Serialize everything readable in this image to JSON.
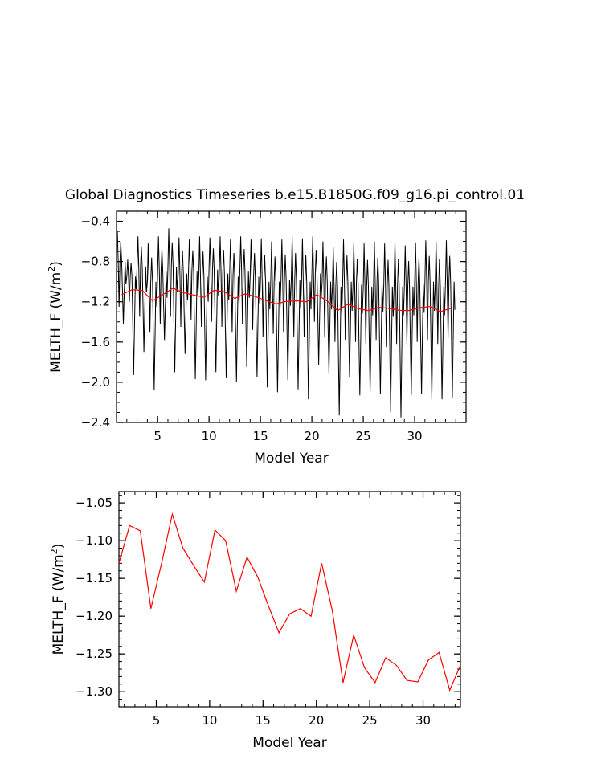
{
  "chart_data": [
    {
      "type": "line",
      "title": "Global Diagnostics Timeseries b.e15.B1850G.f09_g16.pi_control.01",
      "xlabel": "Model Year",
      "ylabel": "MELTH_F (W/m²)",
      "ylabel_parts": {
        "prefix": "MELTH_F (W/m",
        "sup": "2",
        "suffix": ")"
      },
      "xlim": [
        1,
        35
      ],
      "ylim": [
        -2.4,
        -0.3
      ],
      "x_ticks": [
        5,
        10,
        15,
        20,
        25,
        30
      ],
      "x_tick_labels": [
        "5",
        "10",
        "15",
        "20",
        "25",
        "30"
      ],
      "y_ticks": [
        -2.4,
        -2.0,
        -1.6,
        -1.2,
        -0.8,
        -0.4
      ],
      "y_tick_labels": [
        "−2.4",
        "−2.0",
        "−1.6",
        "−1.2",
        "−0.8",
        "−0.4"
      ],
      "grid": false,
      "monthly": {
        "start_year": 1.0,
        "annual_mean": [
          -1.13,
          -1.08,
          -1.087,
          -1.19,
          -1.13,
          -1.065,
          -1.11,
          -1.133,
          -1.155,
          -1.086,
          -1.1,
          -1.167,
          -1.122,
          -1.148,
          -1.186,
          -1.222,
          -1.197,
          -1.19,
          -1.2,
          -1.13,
          -1.193,
          -1.288,
          -1.225,
          -1.268,
          -1.288,
          -1.255,
          -1.265,
          -1.285,
          -1.287,
          -1.258,
          -1.248,
          -1.298,
          -1.265
        ],
        "annual_max": [
          -0.5,
          -0.78,
          -0.55,
          -0.62,
          -0.55,
          -0.47,
          -0.56,
          -0.58,
          -0.55,
          -0.56,
          -0.55,
          -0.58,
          -0.55,
          -0.58,
          -0.57,
          -0.6,
          -0.58,
          -0.55,
          -0.57,
          -0.55,
          -0.6,
          -0.66,
          -0.58,
          -0.62,
          -0.62,
          -0.6,
          -0.62,
          -0.6,
          -0.64,
          -0.61,
          -0.59,
          -0.6,
          -0.59
        ],
        "annual_min": [
          -1.42,
          -1.93,
          -1.7,
          -2.08,
          -1.58,
          -1.9,
          -1.72,
          -1.97,
          -1.98,
          -1.9,
          -1.96,
          -2.0,
          -1.85,
          -1.95,
          -2.05,
          -2.1,
          -1.98,
          -2.07,
          -2.17,
          -1.83,
          -1.92,
          -2.33,
          -1.95,
          -2.13,
          -2.1,
          -2.12,
          -2.3,
          -2.35,
          -2.13,
          -2.12,
          -2.17,
          -2.17,
          -2.16
        ],
        "annual_min2": [
          -1.25,
          -1.2,
          -1.35,
          -1.5,
          -1.42,
          -1.35,
          -1.45,
          -1.38,
          -1.45,
          -1.4,
          -1.45,
          -1.5,
          -1.42,
          -1.48,
          -1.55,
          -1.52,
          -1.5,
          -1.55,
          -1.55,
          -1.4,
          -1.55,
          -1.6,
          -1.58,
          -1.6,
          -1.62,
          -1.58,
          -1.65,
          -1.62,
          -1.62,
          -1.6,
          -1.58,
          -1.62,
          -1.56
        ],
        "annual_mid": [
          -0.8,
          -0.95,
          -0.85,
          -1.0,
          -0.9,
          -0.85,
          -0.92,
          -0.9,
          -0.95,
          -0.88,
          -0.92,
          -0.95,
          -0.9,
          -0.95,
          -1.0,
          -1.0,
          -0.98,
          -0.98,
          -1.0,
          -0.92,
          -1.0,
          -1.05,
          -1.0,
          -1.03,
          -1.05,
          -1.02,
          -1.05,
          -1.05,
          -1.05,
          -1.02,
          -1.0,
          -1.05,
          -1.0
        ],
        "mean_color": "#ff0000",
        "line_color": "#000000"
      }
    },
    {
      "type": "line",
      "xlabel": "Model Year",
      "ylabel": "MELTH_F (W/m²)",
      "ylabel_parts": {
        "prefix": "MELTH_F (W/m",
        "sup": "2",
        "suffix": ")"
      },
      "xlim": [
        1.5,
        33.5
      ],
      "ylim": [
        -1.32,
        -1.035
      ],
      "x_ticks": [
        5,
        10,
        15,
        20,
        25,
        30
      ],
      "x_tick_labels": [
        "5",
        "10",
        "15",
        "20",
        "25",
        "30"
      ],
      "y_ticks": [
        -1.3,
        -1.25,
        -1.2,
        -1.15,
        -1.1,
        -1.05
      ],
      "y_tick_labels": [
        "−1.30",
        "−1.25",
        "−1.20",
        "−1.15",
        "−1.10",
        "−1.05"
      ],
      "grid": false,
      "x": [
        1.5,
        2.5,
        3.5,
        4.5,
        5.5,
        6.5,
        7.5,
        8.5,
        9.5,
        10.5,
        11.5,
        12.5,
        13.5,
        14.5,
        15.5,
        16.5,
        17.5,
        18.5,
        19.5,
        20.5,
        21.5,
        22.5,
        23.5,
        24.5,
        25.5,
        26.5,
        27.5,
        28.5,
        29.5,
        30.5,
        31.5,
        32.5,
        33.5
      ],
      "values": [
        -1.13,
        -1.08,
        -1.087,
        -1.19,
        -1.13,
        -1.065,
        -1.11,
        -1.133,
        -1.155,
        -1.086,
        -1.1,
        -1.167,
        -1.122,
        -1.148,
        -1.186,
        -1.222,
        -1.197,
        -1.19,
        -1.2,
        -1.13,
        -1.193,
        -1.288,
        -1.225,
        -1.268,
        -1.288,
        -1.255,
        -1.265,
        -1.285,
        -1.287,
        -1.258,
        -1.248,
        -1.298,
        -1.265
      ],
      "color": "#ff0000"
    }
  ]
}
